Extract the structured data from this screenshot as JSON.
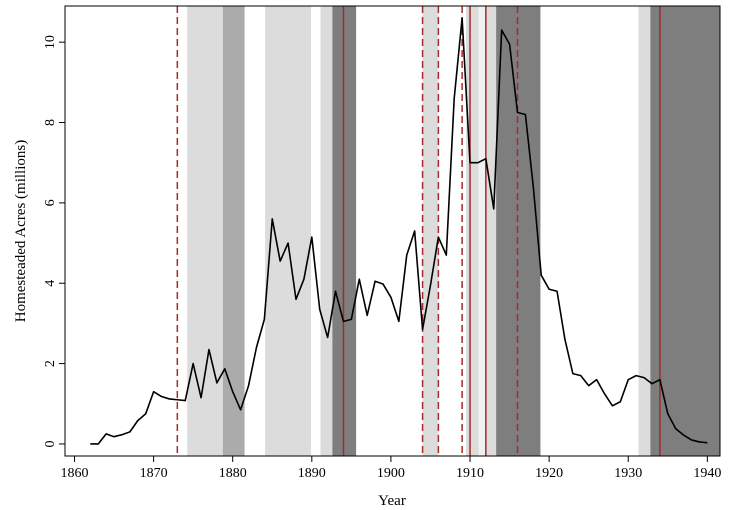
{
  "chart_data": {
    "type": "line",
    "title": "",
    "xlabel": "Year",
    "ylabel": "Homesteaded Acres (millions)",
    "xlim": [
      1858.8,
      1941.6
    ],
    "ylim": [
      -0.3,
      10.9
    ],
    "xticks": [
      1860,
      1870,
      1880,
      1890,
      1900,
      1910,
      1920,
      1930,
      1940
    ],
    "yticks": [
      0,
      2,
      4,
      6,
      8,
      10
    ],
    "legend": "none",
    "grid": false,
    "series": [
      {
        "color": "#000000",
        "x": [
          1862,
          1863,
          1864,
          1865,
          1866,
          1867,
          1868,
          1869,
          1870,
          1871,
          1872,
          1873,
          1874,
          1875,
          1876,
          1877,
          1878,
          1879,
          1880,
          1881,
          1882,
          1883,
          1884,
          1885,
          1886,
          1887,
          1888,
          1889,
          1890,
          1891,
          1892,
          1893,
          1894,
          1895,
          1896,
          1897,
          1898,
          1899,
          1900,
          1901,
          1902,
          1903,
          1904,
          1905,
          1906,
          1907,
          1908,
          1909,
          1910,
          1911,
          1912,
          1913,
          1914,
          1915,
          1916,
          1917,
          1918,
          1919,
          1920,
          1921,
          1922,
          1923,
          1924,
          1925,
          1926,
          1927,
          1928,
          1929,
          1930,
          1931,
          1932,
          1933,
          1934,
          1935,
          1936,
          1937,
          1938,
          1939,
          1940
        ],
        "y": [
          0.0,
          0.0,
          0.25,
          0.18,
          0.23,
          0.3,
          0.58,
          0.75,
          1.3,
          1.18,
          1.12,
          1.1,
          1.08,
          2.0,
          1.15,
          2.35,
          1.52,
          1.87,
          1.3,
          0.85,
          1.45,
          2.4,
          3.1,
          5.6,
          4.55,
          5.0,
          3.6,
          4.1,
          5.15,
          3.35,
          2.65,
          3.8,
          3.05,
          3.1,
          4.1,
          3.2,
          4.05,
          3.98,
          3.65,
          3.05,
          4.7,
          5.3,
          2.85,
          3.95,
          5.15,
          4.7,
          8.6,
          10.6,
          7.0,
          7.0,
          7.1,
          5.85,
          10.3,
          9.95,
          8.25,
          8.2,
          6.4,
          4.2,
          3.85,
          3.8,
          2.6,
          1.75,
          1.7,
          1.45,
          1.6,
          1.25,
          0.95,
          1.05,
          1.6,
          1.7,
          1.65,
          1.5,
          1.6,
          0.75,
          0.38,
          0.22,
          0.1,
          0.05,
          0.03
        ]
      }
    ],
    "shaded_regions": [
      {
        "start": 1874.25,
        "end": 1878.75,
        "color": "#dcdcdc"
      },
      {
        "start": 1878.75,
        "end": 1881.5,
        "color": "#ababab"
      },
      {
        "start": 1884.1,
        "end": 1889.9,
        "color": "#dcdcdc"
      },
      {
        "start": 1891.1,
        "end": 1892.6,
        "color": "#dcdcdc"
      },
      {
        "start": 1892.6,
        "end": 1895.6,
        "color": "#7e7e7e"
      },
      {
        "start": 1904.0,
        "end": 1906.0,
        "color": "#dcdcdc"
      },
      {
        "start": 1909.5,
        "end": 1911.1,
        "color": "#dcdcdc"
      },
      {
        "start": 1911.1,
        "end": 1912.7,
        "color": "#f0f0f0"
      },
      {
        "start": 1912.0,
        "end": 1913.3,
        "color": "#dcdcdc"
      },
      {
        "start": 1913.3,
        "end": 1918.9,
        "color": "#7e7e7e"
      },
      {
        "start": 1931.3,
        "end": 1932.8,
        "color": "#dcdcdc"
      },
      {
        "start": 1932.8,
        "end": 1941.6,
        "color": "#7e7e7e"
      }
    ],
    "vertical_lines": [
      {
        "x": 1873,
        "style": "dashed",
        "color": "#a52a2a"
      },
      {
        "x": 1894,
        "style": "solid",
        "color": "#a52a2a"
      },
      {
        "x": 1904,
        "style": "dashed",
        "color": "#a52a2a"
      },
      {
        "x": 1906,
        "style": "dashed",
        "color": "#a52a2a"
      },
      {
        "x": 1909,
        "style": "dashed",
        "color": "#a52a2a"
      },
      {
        "x": 1910,
        "style": "solid",
        "color": "#a52a2a"
      },
      {
        "x": 1912,
        "style": "solid",
        "color": "#a52a2a"
      },
      {
        "x": 1916,
        "style": "dashed",
        "color": "#a52a2a"
      },
      {
        "x": 1934,
        "style": "solid",
        "color": "#a52a2a"
      }
    ]
  }
}
